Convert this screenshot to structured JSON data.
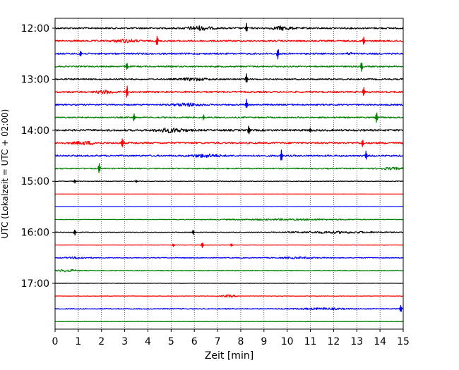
{
  "chart_data": {
    "type": "line",
    "title": "",
    "xlabel": "Zeit  [min]",
    "ylabel": "UTC (Lokalzeit = UTC + 02:00)",
    "xlim": [
      0,
      15
    ],
    "x_ticks": [
      0,
      1,
      2,
      3,
      4,
      5,
      6,
      7,
      8,
      9,
      10,
      11,
      12,
      13,
      14,
      15
    ],
    "x_tick_labels": [
      "0",
      "1",
      "2",
      "3",
      "4",
      "5",
      "6",
      "7",
      "8",
      "9",
      "10",
      "11",
      "12",
      "13",
      "14",
      "15"
    ],
    "y_tick_labels": [
      "12:00",
      "13:00",
      "14:00",
      "15:00",
      "16:00",
      "17:00"
    ],
    "y_tick_rows": [
      0,
      4,
      8,
      12,
      16,
      20
    ],
    "row_interval_minutes": 15,
    "start_time": "12:00",
    "grid": "x-dotted",
    "series_colors": [
      "#000000",
      "#ff0000",
      "#0000ff",
      "#008000"
    ],
    "series": [
      {
        "start": "12:00",
        "color": "#000000",
        "activity": 0.7,
        "events": [
          {
            "x": 6.2,
            "a": 0.8,
            "w": 0.5
          },
          {
            "x": 8.25,
            "a": 1.0,
            "w": 0.05
          },
          {
            "x": 9.8,
            "a": 0.7,
            "w": 0.4
          }
        ]
      },
      {
        "start": "12:15",
        "color": "#ff0000",
        "activity": 0.7,
        "events": [
          {
            "x": 3.0,
            "a": 0.6,
            "w": 0.5
          },
          {
            "x": 4.4,
            "a": 1.2,
            "w": 0.05
          },
          {
            "x": 13.3,
            "a": 1.0,
            "w": 0.05
          }
        ]
      },
      {
        "start": "12:30",
        "color": "#0000ff",
        "activity": 0.7,
        "events": [
          {
            "x": 1.1,
            "a": 0.6,
            "w": 0.05
          },
          {
            "x": 9.6,
            "a": 1.1,
            "w": 0.05
          },
          {
            "x": 12.7,
            "a": 0.5,
            "w": 0.1
          }
        ]
      },
      {
        "start": "12:45",
        "color": "#008000",
        "activity": 0.6,
        "events": [
          {
            "x": 3.1,
            "a": 0.8,
            "w": 0.05
          },
          {
            "x": 13.2,
            "a": 1.1,
            "w": 0.05
          }
        ]
      },
      {
        "start": "13:00",
        "color": "#000000",
        "activity": 0.6,
        "events": [
          {
            "x": 8.25,
            "a": 1.0,
            "w": 0.05
          },
          {
            "x": 6.0,
            "a": 0.5,
            "w": 0.6
          }
        ]
      },
      {
        "start": "13:15",
        "color": "#ff0000",
        "activity": 0.7,
        "events": [
          {
            "x": 2.2,
            "a": 0.6,
            "w": 0.4
          },
          {
            "x": 3.1,
            "a": 1.2,
            "w": 0.05
          },
          {
            "x": 13.3,
            "a": 0.9,
            "w": 0.05
          }
        ]
      },
      {
        "start": "13:30",
        "color": "#0000ff",
        "activity": 0.6,
        "events": [
          {
            "x": 5.7,
            "a": 0.6,
            "w": 0.6
          },
          {
            "x": 8.25,
            "a": 1.0,
            "w": 0.05
          }
        ]
      },
      {
        "start": "13:45",
        "color": "#008000",
        "activity": 0.6,
        "events": [
          {
            "x": 3.4,
            "a": 0.8,
            "w": 0.05
          },
          {
            "x": 6.4,
            "a": 0.5,
            "w": 0.05
          },
          {
            "x": 13.85,
            "a": 1.1,
            "w": 0.05
          }
        ]
      },
      {
        "start": "14:00",
        "color": "#000000",
        "activity": 0.8,
        "events": [
          {
            "x": 5.0,
            "a": 0.8,
            "w": 0.6
          },
          {
            "x": 8.35,
            "a": 1.0,
            "w": 0.05
          },
          {
            "x": 11.0,
            "a": 0.6,
            "w": 0.05
          }
        ]
      },
      {
        "start": "14:15",
        "color": "#ff0000",
        "activity": 0.7,
        "events": [
          {
            "x": 1.3,
            "a": 0.6,
            "w": 0.5
          },
          {
            "x": 2.9,
            "a": 1.0,
            "w": 0.05
          },
          {
            "x": 13.25,
            "a": 0.9,
            "w": 0.05
          }
        ]
      },
      {
        "start": "14:30",
        "color": "#0000ff",
        "activity": 0.7,
        "events": [
          {
            "x": 6.5,
            "a": 0.6,
            "w": 0.6
          },
          {
            "x": 9.75,
            "a": 1.2,
            "w": 0.05
          },
          {
            "x": 13.4,
            "a": 0.9,
            "w": 0.05
          }
        ]
      },
      {
        "start": "14:45",
        "color": "#008000",
        "activity": 0.5,
        "events": [
          {
            "x": 1.9,
            "a": 1.1,
            "w": 0.05
          },
          {
            "x": 14.5,
            "a": 0.4,
            "w": 0.5
          }
        ]
      },
      {
        "start": "15:00",
        "color": "#000000",
        "activity": 0.25,
        "events": [
          {
            "x": 0.85,
            "a": 0.4,
            "w": 0.05
          },
          {
            "x": 3.5,
            "a": 0.3,
            "w": 0.05
          }
        ]
      },
      {
        "start": "15:15",
        "color": "#ff0000",
        "activity": 0.05,
        "events": []
      },
      {
        "start": "15:30",
        "color": "#0000ff",
        "activity": 0.05,
        "events": []
      },
      {
        "start": "15:45",
        "color": "#008000",
        "activity": 0.2,
        "events": [
          {
            "x": 10.0,
            "a": 0.3,
            "w": 3.0
          }
        ]
      },
      {
        "start": "16:00",
        "color": "#000000",
        "activity": 0.3,
        "events": [
          {
            "x": 0.85,
            "a": 0.6,
            "w": 0.05
          },
          {
            "x": 5.95,
            "a": 0.5,
            "w": 0.05
          },
          {
            "x": 12.0,
            "a": 0.4,
            "w": 2.0
          }
        ]
      },
      {
        "start": "16:15",
        "color": "#ff0000",
        "activity": 0.15,
        "events": [
          {
            "x": 5.1,
            "a": 0.3,
            "w": 0.05
          },
          {
            "x": 6.35,
            "a": 0.6,
            "w": 0.05
          },
          {
            "x": 7.6,
            "a": 0.3,
            "w": 0.05
          }
        ]
      },
      {
        "start": "16:30",
        "color": "#0000ff",
        "activity": 0.35,
        "events": [
          {
            "x": 1.0,
            "a": 0.3,
            "w": 0.5
          },
          {
            "x": 10.5,
            "a": 0.3,
            "w": 0.8
          }
        ]
      },
      {
        "start": "16:45",
        "color": "#008000",
        "activity": 0.3,
        "events": [
          {
            "x": 0.5,
            "a": 0.5,
            "w": 0.4
          }
        ]
      },
      {
        "start": "17:00",
        "color": "#000000",
        "activity": 0.15,
        "events": []
      },
      {
        "start": "17:15",
        "color": "#ff0000",
        "activity": 0.2,
        "events": [
          {
            "x": 7.5,
            "a": 0.5,
            "w": 0.3
          }
        ]
      },
      {
        "start": "17:30",
        "color": "#0000ff",
        "activity": 0.4,
        "events": [
          {
            "x": 11.5,
            "a": 0.3,
            "w": 1.0
          },
          {
            "x": 14.9,
            "a": 0.7,
            "w": 0.05
          }
        ]
      },
      {
        "start": "17:45",
        "color": "#008000",
        "activity": 0.15,
        "events": []
      }
    ]
  }
}
